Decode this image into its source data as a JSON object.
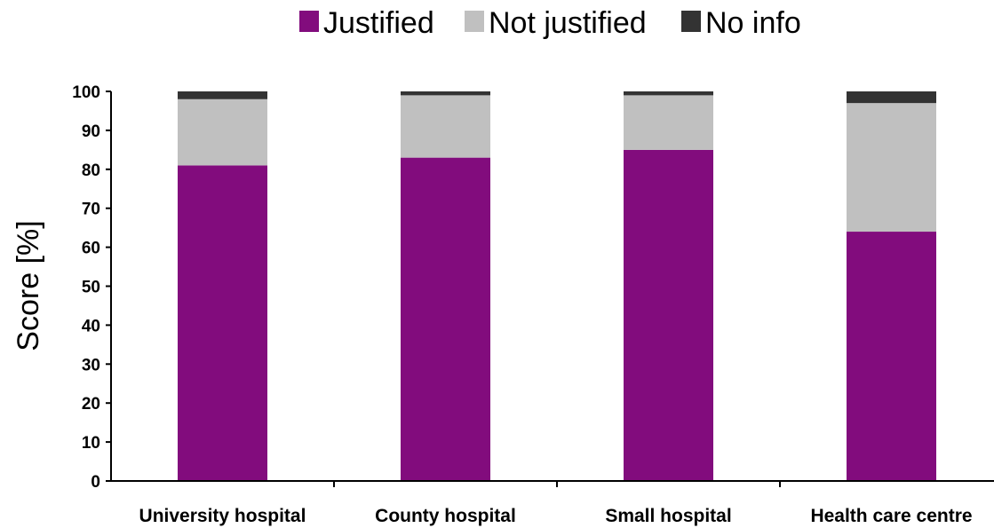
{
  "chart_data": {
    "type": "bar",
    "stacked": true,
    "title": "",
    "xlabel": "",
    "ylabel": "Score [%]",
    "ylim": [
      0,
      100
    ],
    "yticks": [
      0,
      10,
      20,
      30,
      40,
      50,
      60,
      70,
      80,
      90,
      100
    ],
    "grid": false,
    "legend_position": "top",
    "categories": [
      "University hospital",
      "County hospital",
      "Small hospital",
      "Health care centre"
    ],
    "series": [
      {
        "name": "Justified",
        "color": "#820c7d",
        "values": [
          81,
          83,
          85,
          64
        ]
      },
      {
        "name": "Not justified",
        "color": "#c0c0c0",
        "values": [
          17,
          16,
          14,
          33
        ]
      },
      {
        "name": "No info",
        "color": "#333333",
        "values": [
          2,
          1,
          1,
          3
        ]
      }
    ]
  }
}
